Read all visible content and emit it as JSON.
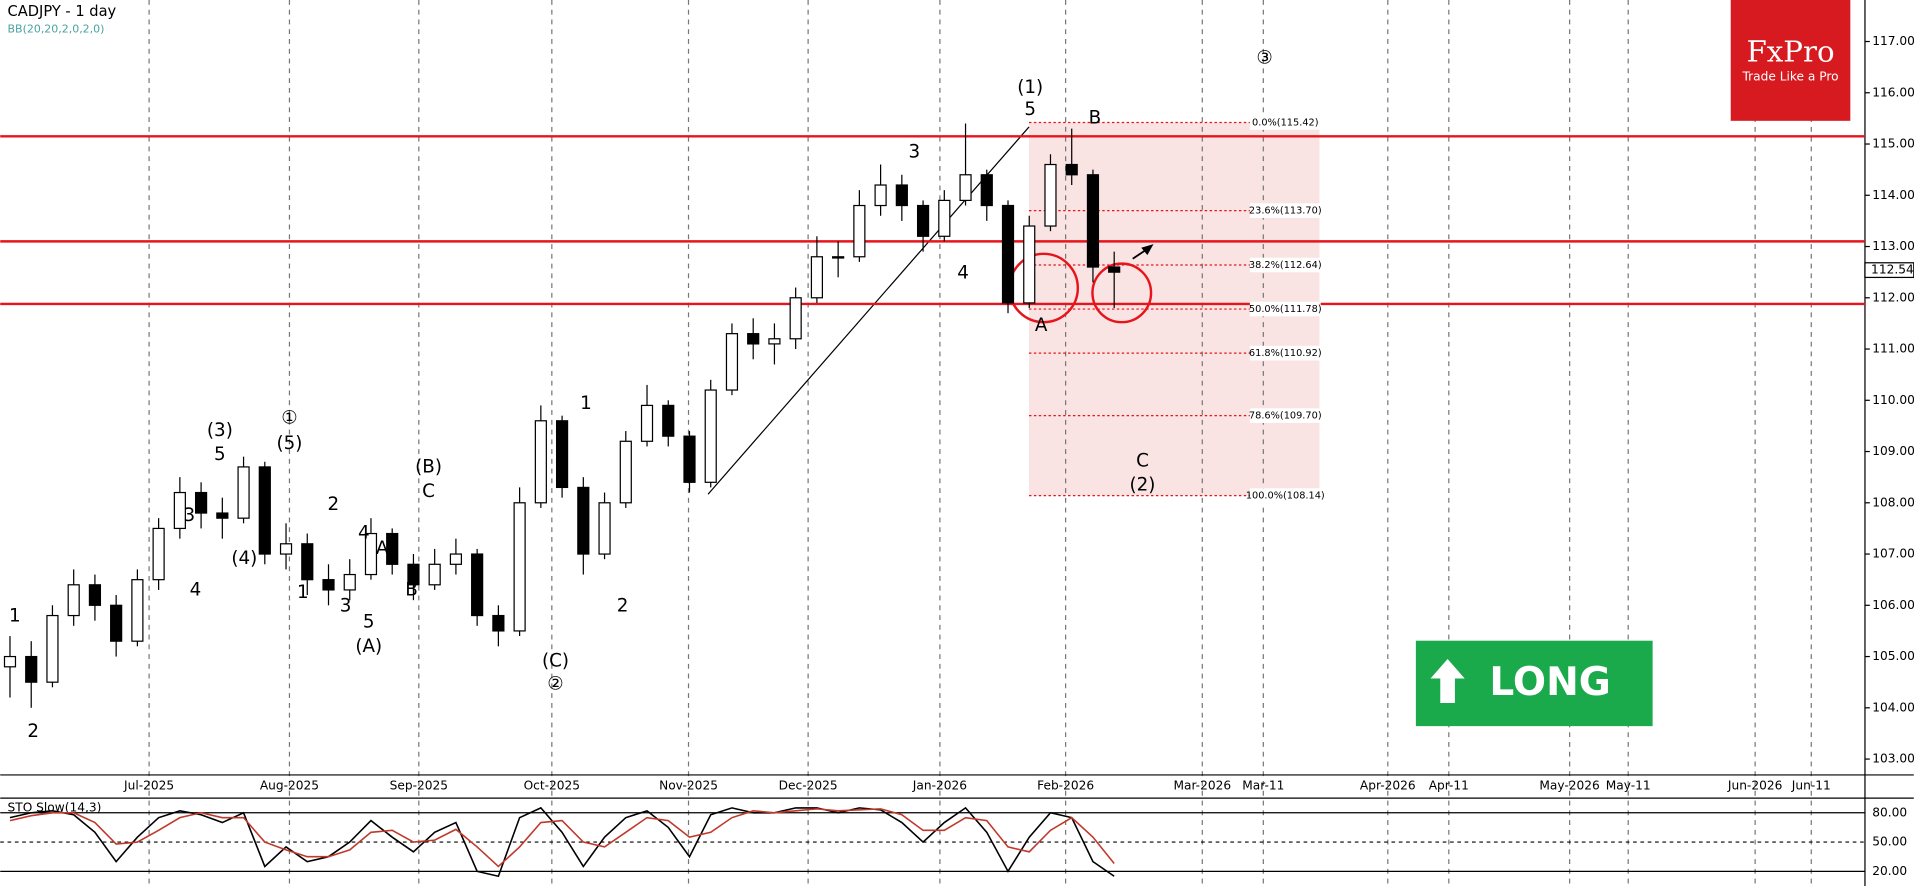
{
  "chart_data": {
    "type": "candlestick",
    "title": "CADJPY - 1 day",
    "indicator_label": "BB(20,20,2,0,2,0)",
    "candles": [
      [
        104.8,
        105.4,
        104.2,
        105.0
      ],
      [
        105.0,
        105.3,
        104.0,
        104.5
      ],
      [
        104.5,
        106.0,
        104.4,
        105.8
      ],
      [
        105.8,
        106.7,
        105.6,
        106.4
      ],
      [
        106.4,
        106.6,
        105.7,
        106.0
      ],
      [
        106.0,
        106.2,
        105.0,
        105.3
      ],
      [
        105.3,
        106.7,
        105.2,
        106.5
      ],
      [
        106.5,
        107.7,
        106.3,
        107.5
      ],
      [
        107.5,
        108.5,
        107.3,
        108.2
      ],
      [
        108.2,
        108.4,
        107.5,
        107.8
      ],
      [
        107.8,
        108.1,
        107.3,
        107.7
      ],
      [
        107.7,
        108.9,
        107.6,
        108.7
      ],
      [
        108.7,
        108.8,
        106.8,
        107.0
      ],
      [
        107.0,
        107.6,
        106.7,
        107.2
      ],
      [
        107.2,
        107.4,
        106.2,
        106.5
      ],
      [
        106.5,
        106.8,
        106.0,
        106.3
      ],
      [
        106.3,
        106.9,
        106.1,
        106.6
      ],
      [
        106.6,
        107.7,
        106.5,
        107.4
      ],
      [
        107.4,
        107.5,
        106.6,
        106.8
      ],
      [
        106.8,
        107.0,
        106.1,
        106.4
      ],
      [
        106.4,
        107.1,
        106.3,
        106.8
      ],
      [
        106.8,
        107.3,
        106.6,
        107.0
      ],
      [
        107.0,
        107.1,
        105.6,
        105.8
      ],
      [
        105.8,
        106.0,
        105.2,
        105.5
      ],
      [
        105.5,
        108.3,
        105.4,
        108.0
      ],
      [
        108.0,
        109.9,
        107.9,
        109.6
      ],
      [
        109.6,
        109.7,
        108.1,
        108.3
      ],
      [
        108.3,
        108.5,
        106.6,
        107.0
      ],
      [
        107.0,
        108.2,
        106.9,
        108.0
      ],
      [
        108.0,
        109.4,
        107.9,
        109.2
      ],
      [
        109.2,
        110.3,
        109.1,
        109.9
      ],
      [
        109.9,
        110.0,
        109.1,
        109.3
      ],
      [
        109.3,
        109.4,
        108.2,
        108.4
      ],
      [
        108.4,
        110.4,
        108.3,
        110.2
      ],
      [
        110.2,
        111.5,
        110.1,
        111.3
      ],
      [
        111.3,
        111.6,
        110.8,
        111.1
      ],
      [
        111.1,
        111.5,
        110.7,
        111.2
      ],
      [
        111.2,
        112.2,
        111.0,
        112.0
      ],
      [
        112.0,
        113.2,
        111.9,
        112.8
      ],
      [
        112.8,
        113.1,
        112.4,
        112.8
      ],
      [
        112.8,
        114.1,
        112.7,
        113.8
      ],
      [
        113.8,
        114.6,
        113.6,
        114.2
      ],
      [
        114.2,
        114.4,
        113.5,
        113.8
      ],
      [
        113.8,
        113.9,
        112.9,
        113.2
      ],
      [
        113.2,
        114.1,
        113.1,
        113.9
      ],
      [
        113.9,
        115.4,
        113.8,
        114.4
      ],
      [
        114.4,
        114.5,
        113.5,
        113.8
      ],
      [
        113.8,
        113.9,
        111.7,
        111.9
      ],
      [
        111.9,
        113.6,
        111.8,
        113.4
      ],
      [
        113.4,
        114.8,
        113.3,
        114.6
      ],
      [
        114.6,
        115.3,
        114.2,
        114.4
      ],
      [
        114.4,
        114.5,
        112.3,
        112.6
      ],
      [
        112.6,
        112.9,
        111.8,
        112.5
      ]
    ],
    "ylim": [
      102.69,
      117.81
    ],
    "yticks": [
      {
        "value": 103,
        "label": "103.00"
      },
      {
        "value": 104,
        "label": "104.00"
      },
      {
        "value": 105,
        "label": "105.00"
      },
      {
        "value": 106,
        "label": "106.00"
      },
      {
        "value": 107,
        "label": "107.00"
      },
      {
        "value": 108,
        "label": "108.00"
      },
      {
        "value": 109,
        "label": "109.00"
      },
      {
        "value": 110,
        "label": "110.00"
      },
      {
        "value": 111,
        "label": "111.00"
      },
      {
        "value": 112,
        "label": "112.00"
      },
      {
        "value": 113,
        "label": "113.00"
      },
      {
        "value": 114,
        "label": "114.00"
      },
      {
        "value": 115,
        "label": "115.00"
      },
      {
        "value": 116,
        "label": "116.00"
      },
      {
        "value": 117,
        "label": "117.00"
      }
    ],
    "xticks": [
      "Jul-2025",
      "Aug-2025",
      "Sep-2025",
      "Oct-2025",
      "Nov-2025",
      "Dec-2025",
      "Jan-2026",
      "Feb-2026",
      "Mar-2026",
      "Mar-11",
      "Apr-2026",
      "Apr-11",
      "May-2026",
      "May-11",
      "Jun-2026",
      "Jun-11"
    ],
    "current_price": {
      "value": 112.54,
      "label": "112.54"
    },
    "levels": [
      115.15,
      113.1,
      111.88
    ],
    "level_color": "#e8141b",
    "fib": [
      {
        "value": 115.42,
        "label": "0.0%(115.42)"
      },
      {
        "value": 113.7,
        "label": "23.6%(113.70)"
      },
      {
        "value": 112.64,
        "label": "38.2%(112.64)"
      },
      {
        "value": 111.78,
        "label": "50.0%(111.78)"
      },
      {
        "value": 110.92,
        "label": "61.8%(110.92)"
      },
      {
        "value": 109.7,
        "label": "78.6%(109.70)"
      },
      {
        "value": 108.14,
        "label": "100.0%(108.14)"
      }
    ],
    "annotations": [
      "1",
      "2",
      "3",
      "4",
      "5",
      "(3)",
      "(4)",
      "①",
      "(5)",
      "1",
      "2",
      "3",
      "4",
      "A",
      "5",
      "(A)",
      "B",
      "C",
      "(B)",
      "(C)",
      "②",
      "1",
      "2",
      "3",
      "4",
      "5",
      "(1)",
      "A",
      "B",
      "C",
      "(2)",
      "③"
    ],
    "signal": "LONG",
    "logo": {
      "name": "FxPro",
      "tagline": "Trade Like a Pro"
    },
    "stochastic": {
      "label": "STO Slow(14,3)",
      "ylim": [
        15,
        87.5
      ],
      "yticks": [
        {
          "value": 80,
          "label": "80.00"
        },
        {
          "value": 50,
          "label": "50.00"
        },
        {
          "value": 20,
          "label": "20.00"
        }
      ],
      "series": [
        {
          "color": "#000000",
          "values": [
            75,
            80,
            82,
            78,
            60,
            30,
            55,
            75,
            82,
            78,
            70,
            80,
            25,
            45,
            30,
            35,
            50,
            72,
            55,
            40,
            60,
            70,
            20,
            15,
            75,
            85,
            60,
            25,
            55,
            75,
            82,
            65,
            35,
            78,
            85,
            80,
            80,
            85,
            85,
            80,
            85,
            83,
            70,
            50,
            70,
            85,
            60,
            20,
            55,
            80,
            75,
            30,
            15
          ]
        },
        {
          "color": "#c0392b",
          "values": [
            72,
            77,
            80,
            80,
            70,
            48,
            50,
            62,
            75,
            80,
            75,
            75,
            50,
            42,
            35,
            35,
            42,
            60,
            62,
            50,
            52,
            63,
            45,
            25,
            45,
            70,
            72,
            50,
            45,
            60,
            75,
            72,
            55,
            60,
            75,
            82,
            80,
            82,
            84,
            82,
            83,
            84,
            78,
            62,
            62,
            75,
            72,
            45,
            40,
            62,
            75,
            55,
            28
          ]
        }
      ]
    }
  }
}
